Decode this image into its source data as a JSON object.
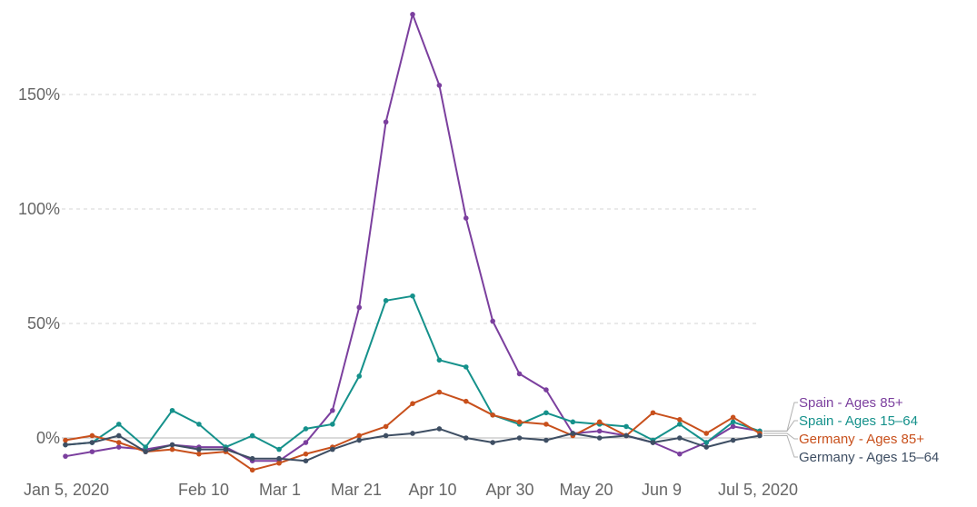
{
  "chart_data": {
    "type": "line",
    "title": "",
    "xlabel": "",
    "ylabel": "",
    "ylim": [
      -15,
      190
    ],
    "y_ticks": [
      "0%",
      "50%",
      "100%",
      "150%"
    ],
    "x_ticks": [
      "Jan 5, 2020",
      "Feb 10",
      "Mar 1",
      "Mar 21",
      "Apr 10",
      "Apr 30",
      "May 20",
      "Jun 9",
      "Jul 5, 2020"
    ],
    "grid": true,
    "legend_position": "right",
    "x_axis_type": "weekly",
    "x": [
      "Jan 5",
      "Jan 12",
      "Jan 19",
      "Jan 26",
      "Feb 2",
      "Feb 9",
      "Feb 16",
      "Feb 23",
      "Mar 1",
      "Mar 8",
      "Mar 15",
      "Mar 22",
      "Mar 29",
      "Apr 5",
      "Apr 12",
      "Apr 19",
      "Apr 26",
      "May 3",
      "May 10",
      "May 17",
      "May 24",
      "May 31",
      "Jun 7",
      "Jun 14",
      "Jun 21",
      "Jun 28",
      "Jul 5"
    ],
    "series": [
      {
        "name": "Spain - Ages 85+",
        "color": "#7b3f9e",
        "values": [
          -8,
          -6,
          -4,
          -5,
          -3,
          -4,
          -4,
          -10,
          -10,
          -2,
          12,
          57,
          138,
          185,
          154,
          96,
          51,
          28,
          21,
          2,
          3,
          1,
          -2,
          -7,
          -2,
          5,
          3
        ]
      },
      {
        "name": "Spain - Ages 15–64",
        "color": "#15918b",
        "values": [
          -3,
          -2,
          6,
          -4,
          12,
          6,
          -4,
          1,
          -5,
          4,
          6,
          27,
          60,
          62,
          34,
          31,
          10,
          6,
          11,
          7,
          6,
          5,
          -1,
          6,
          -2,
          7,
          3
        ]
      },
      {
        "name": "Germany - Ages 85+",
        "color": "#c8501c",
        "values": [
          -1,
          1,
          -2,
          -6,
          -5,
          -7,
          -6,
          -14,
          -11,
          -7,
          -4,
          1,
          5,
          15,
          20,
          16,
          10,
          7,
          6,
          1,
          7,
          1,
          11,
          8,
          2,
          9,
          2
        ]
      },
      {
        "name": "Germany - Ages 15–64",
        "color": "#3e4e63",
        "values": [
          -3,
          -2,
          1,
          -6,
          -3,
          -5,
          -5,
          -9,
          -9,
          -10,
          -5,
          -1,
          1,
          2,
          4,
          0,
          -2,
          0,
          -1,
          2,
          0,
          1,
          -2,
          0,
          -4,
          -1,
          1
        ]
      }
    ]
  }
}
